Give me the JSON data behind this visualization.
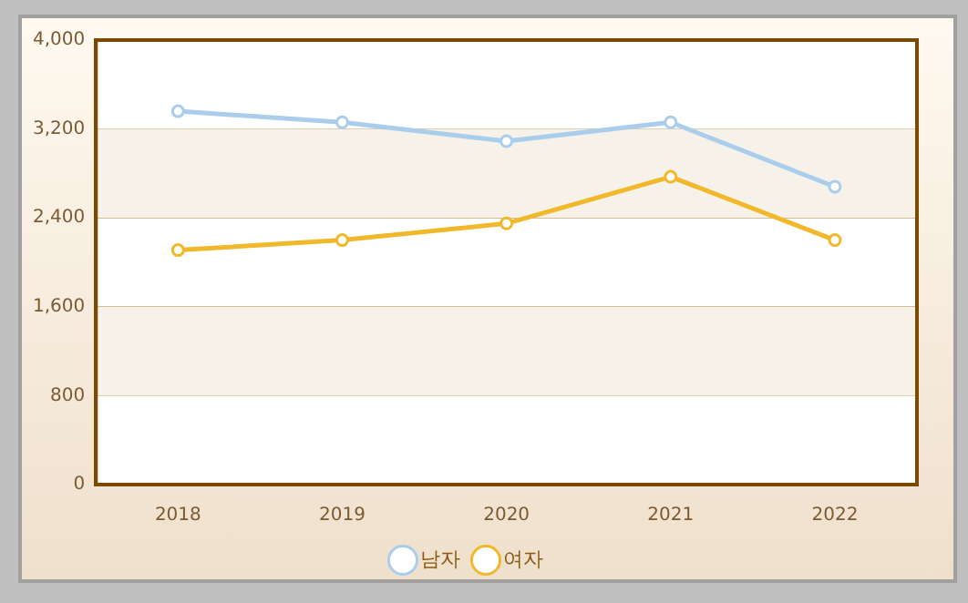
{
  "chart_data": {
    "type": "line",
    "categories": [
      "2018",
      "2019",
      "2020",
      "2021",
      "2022"
    ],
    "series": [
      {
        "name": "남자",
        "color": "#a9cdea",
        "values": [
          3360,
          3260,
          3090,
          3260,
          2680
        ]
      },
      {
        "name": "여자",
        "color": "#f0b82a",
        "values": [
          2110,
          2200,
          2350,
          2770,
          2200
        ]
      }
    ],
    "ylim": [
      0,
      4000
    ],
    "yticks": [
      0,
      800,
      {
        "value": 1600,
        "label": "1,600"
      },
      {
        "value": 2400,
        "label": "2,400"
      },
      {
        "value": 3200,
        "label": "3,200"
      },
      {
        "value": 4000,
        "label": "4,000"
      }
    ],
    "grid": "y",
    "legend": "bottom",
    "marker": "circle",
    "line_style": "solid"
  }
}
